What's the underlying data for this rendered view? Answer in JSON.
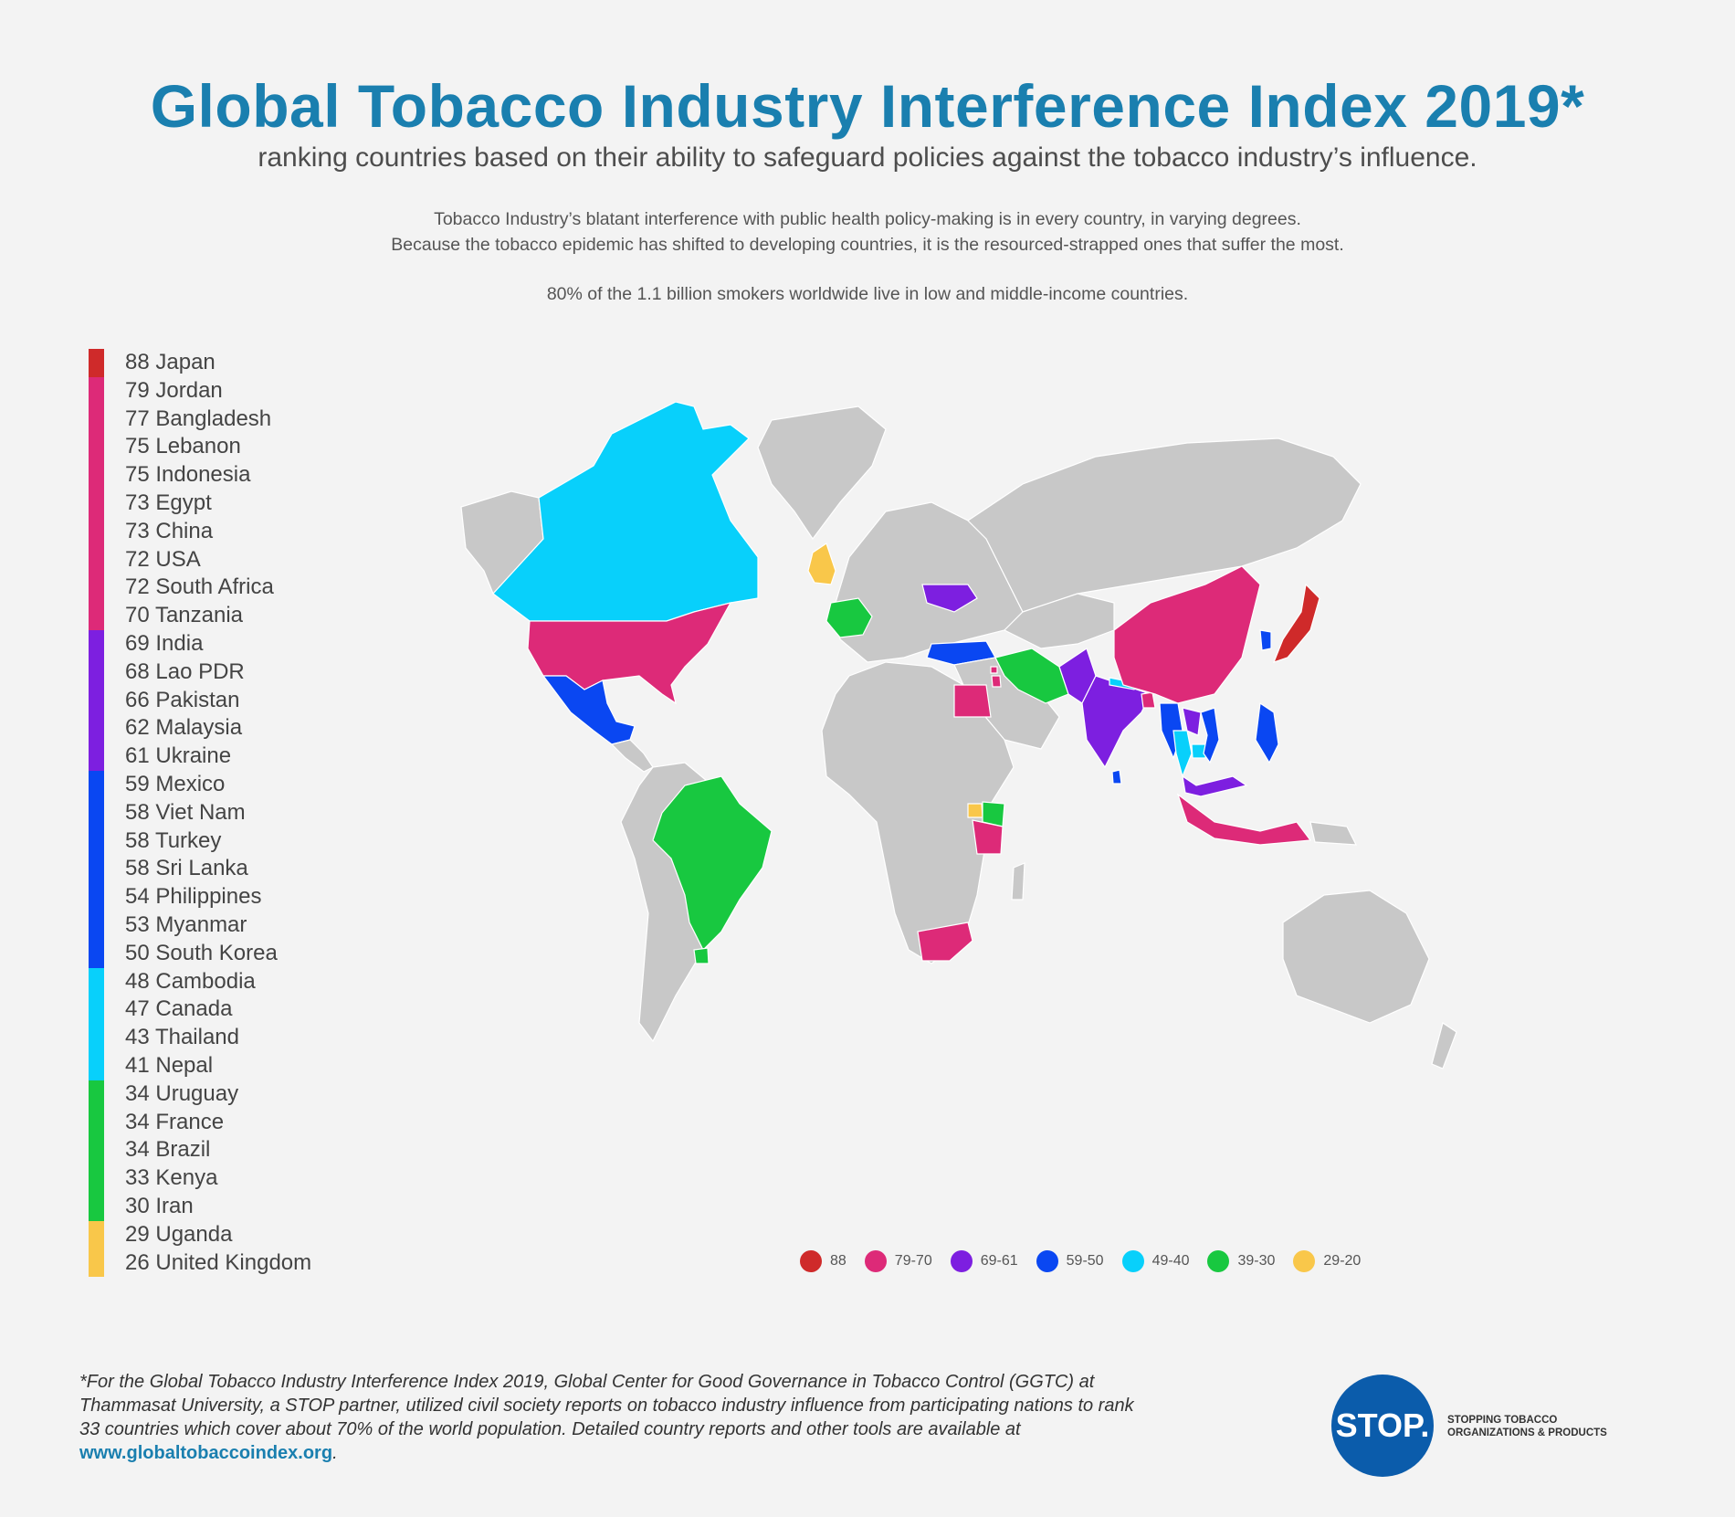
{
  "title": "Global Tobacco Industry Interference Index 2019*",
  "subtitle": "ranking countries based on their ability to safeguard policies against the tobacco industry’s influence.",
  "intro": {
    "line1": "Tobacco Industry’s blatant interference with public health policy-making is in every country, in varying degrees.",
    "line2": "Because the tobacco epidemic has shifted to developing countries, it is the resourced-strapped ones that suffer the most.",
    "line3": "80% of the 1.1 billion smokers worldwide live in low and middle-income countries."
  },
  "colors": {
    "88": "#cf2a2a",
    "79-70": "#dd2a78",
    "69-61": "#7d1fe0",
    "59-50": "#0a47f2",
    "49-40": "#08d0fb",
    "39-30": "#18c840",
    "29-20": "#f9c74a",
    "land": "#c8c8c8"
  },
  "countries": [
    {
      "score": "88",
      "name": "Japan",
      "band": "88"
    },
    {
      "score": "79",
      "name": "Jordan",
      "band": "79-70"
    },
    {
      "score": "77",
      "name": "Bangladesh",
      "band": "79-70"
    },
    {
      "score": "75",
      "name": "Lebanon",
      "band": "79-70"
    },
    {
      "score": "75",
      "name": "Indonesia",
      "band": "79-70"
    },
    {
      "score": "73",
      "name": "Egypt",
      "band": "79-70"
    },
    {
      "score": "73",
      "name": "China",
      "band": "79-70"
    },
    {
      "score": "72",
      "name": "USA",
      "band": "79-70"
    },
    {
      "score": "72",
      "name": "South Africa",
      "band": "79-70"
    },
    {
      "score": "70",
      "name": "Tanzania",
      "band": "79-70"
    },
    {
      "score": "69",
      "name": "India",
      "band": "69-61"
    },
    {
      "score": "68",
      "name": "Lao PDR",
      "band": "69-61"
    },
    {
      "score": "66",
      "name": "Pakistan",
      "band": "69-61"
    },
    {
      "score": "62",
      "name": "Malaysia",
      "band": "69-61"
    },
    {
      "score": "61",
      "name": "Ukraine",
      "band": "69-61"
    },
    {
      "score": "59",
      "name": "Mexico",
      "band": "59-50"
    },
    {
      "score": "58",
      "name": "Viet Nam",
      "band": "59-50"
    },
    {
      "score": "58",
      "name": "Turkey",
      "band": "59-50"
    },
    {
      "score": "58",
      "name": "Sri Lanka",
      "band": "59-50"
    },
    {
      "score": "54",
      "name": "Philippines",
      "band": "59-50"
    },
    {
      "score": "53",
      "name": "Myanmar",
      "band": "59-50"
    },
    {
      "score": "50",
      "name": "South Korea",
      "band": "59-50"
    },
    {
      "score": "48",
      "name": "Cambodia",
      "band": "49-40"
    },
    {
      "score": "47",
      "name": "Canada",
      "band": "49-40"
    },
    {
      "score": "43",
      "name": "Thailand",
      "band": "49-40"
    },
    {
      "score": "41",
      "name": "Nepal",
      "band": "49-40"
    },
    {
      "score": "34",
      "name": "Uruguay",
      "band": "39-30"
    },
    {
      "score": "34",
      "name": "France",
      "band": "39-30"
    },
    {
      "score": "34",
      "name": "Brazil",
      "band": "39-30"
    },
    {
      "score": "33",
      "name": "Kenya",
      "band": "39-30"
    },
    {
      "score": "30",
      "name": "Iran",
      "band": "39-30"
    },
    {
      "score": "29",
      "name": "Uganda",
      "band": "29-20"
    },
    {
      "score": "26",
      "name": "United Kingdom",
      "band": "29-20"
    }
  ],
  "key": [
    "88",
    "79-70",
    "69-61",
    "59-50",
    "49-40",
    "39-30",
    "29-20"
  ],
  "footnote": {
    "text": "*For the Global Tobacco Industry Interference Index 2019, Global Center for Good Governance in Tobacco Control (GGTC) at Thammasat University, a STOP partner, utilized civil society reports on tobacco industry influence from participating nations to rank 33 countries which cover about 70% of the world population. Detailed country reports and other tools are available at ",
    "link": "www.globaltobaccoindex.org",
    "end": "."
  },
  "logo": {
    "mark": "STOP.",
    "line1": "STOPPING TOBACCO",
    "line2": "ORGANIZATIONS & PRODUCTS"
  }
}
